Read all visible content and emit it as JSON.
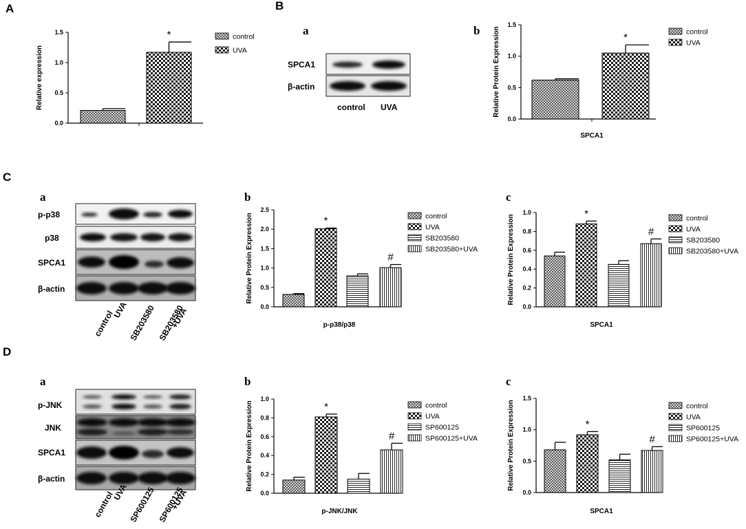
{
  "panels": {
    "A": "A",
    "B": "B",
    "C": "C",
    "D": "D",
    "Ba": "a",
    "Bb": "b",
    "Ca": "a",
    "Cb": "b",
    "Cc": "c",
    "Da": "a",
    "Db": "b",
    "Dc": "c"
  },
  "blots": {
    "B": {
      "rows": [
        "SPCA1",
        "β-actin"
      ],
      "lanes": [
        "control",
        "UVA"
      ]
    },
    "C": {
      "rows": [
        "p-p38",
        "p38",
        "SPCA1",
        "β-actin"
      ],
      "lanes": [
        "control",
        "UVA",
        "SB203580",
        "SB203580",
        "+UVA"
      ]
    },
    "D": {
      "rows": [
        "p-JNK",
        "JNK",
        "SPCA1",
        "β-actin"
      ],
      "lanes": [
        "control",
        "UVA",
        "SP600125",
        "SP600125",
        "+UVA"
      ]
    }
  },
  "chart_data": [
    {
      "id": "A",
      "type": "bar",
      "ylabel": "Relative expression",
      "xlabel": "",
      "ylim": [
        0,
        1.5
      ],
      "yticks": [
        "0.0",
        "0.5",
        "1.0",
        "1.5"
      ],
      "legend": [
        "control",
        "UVA"
      ],
      "legend_position": "top-right",
      "series": [
        {
          "name": "control",
          "value": 0.21,
          "error": 0.03,
          "mark": ""
        },
        {
          "name": "UVA",
          "value": 1.17,
          "error": 0.17,
          "mark": "*"
        }
      ]
    },
    {
      "id": "Bb",
      "type": "bar",
      "ylabel": "Relative Protein Expression",
      "xlabel": "SPCA1",
      "ylim": [
        0,
        1.5
      ],
      "yticks": [
        "0.0",
        "0.5",
        "1.0",
        "1.5"
      ],
      "legend": [
        "control",
        "UVA"
      ],
      "legend_position": "top-right",
      "series": [
        {
          "name": "control",
          "value": 0.62,
          "error": 0.02,
          "mark": ""
        },
        {
          "name": "UVA",
          "value": 1.05,
          "error": 0.13,
          "mark": "*"
        }
      ]
    },
    {
      "id": "Cb",
      "type": "bar",
      "ylabel": "Relative Protein Expression",
      "xlabel": "p-p38/p38",
      "ylim": [
        0,
        2.5
      ],
      "yticks": [
        "0.0",
        "0.5",
        "1.0",
        "1.5",
        "2.0",
        "2.5"
      ],
      "legend": [
        "control",
        "UVA",
        "SB203580",
        "SB203580+UVA"
      ],
      "legend_position": "right",
      "series": [
        {
          "name": "control",
          "value": 0.32,
          "error": 0.02,
          "mark": ""
        },
        {
          "name": "UVA",
          "value": 2.01,
          "error": 0.02,
          "mark": "*"
        },
        {
          "name": "SB203580",
          "value": 0.8,
          "error": 0.05,
          "mark": ""
        },
        {
          "name": "SB203580+UVA",
          "value": 1.01,
          "error": 0.08,
          "mark": "#"
        }
      ]
    },
    {
      "id": "Cc",
      "type": "bar",
      "ylabel": "Relative Protein Expression",
      "xlabel": "SPCA1",
      "ylim": [
        0,
        1.0
      ],
      "yticks": [
        "0.0",
        "0.2",
        "0.4",
        "0.6",
        "0.8",
        "1.0"
      ],
      "legend": [
        "control",
        "UVA",
        "SB203580",
        "SB203580+UVA"
      ],
      "legend_position": "right",
      "series": [
        {
          "name": "control",
          "value": 0.54,
          "error": 0.04,
          "mark": ""
        },
        {
          "name": "UVA",
          "value": 0.88,
          "error": 0.03,
          "mark": "*"
        },
        {
          "name": "SB203580",
          "value": 0.45,
          "error": 0.04,
          "mark": ""
        },
        {
          "name": "SB203580+UVA",
          "value": 0.67,
          "error": 0.05,
          "mark": "#"
        }
      ]
    },
    {
      "id": "Db",
      "type": "bar",
      "ylabel": "Relative Protein Expression",
      "xlabel": "p-JNK/JNK",
      "ylim": [
        0,
        1.0
      ],
      "yticks": [
        "0.0",
        "0.2",
        "0.4",
        "0.6",
        "0.8",
        "1.0"
      ],
      "legend": [
        "control",
        "UVA",
        "SP600125",
        "SP600125+UVA"
      ],
      "legend_position": "right",
      "series": [
        {
          "name": "control",
          "value": 0.14,
          "error": 0.03,
          "mark": ""
        },
        {
          "name": "UVA",
          "value": 0.81,
          "error": 0.03,
          "mark": "*"
        },
        {
          "name": "SP600125",
          "value": 0.15,
          "error": 0.06,
          "mark": ""
        },
        {
          "name": "SP600125+UVA",
          "value": 0.46,
          "error": 0.07,
          "mark": "#"
        }
      ]
    },
    {
      "id": "Dc",
      "type": "bar",
      "ylabel": "Relative Protein Expression",
      "xlabel": "SPCA1",
      "ylim": [
        0,
        1.5
      ],
      "yticks": [
        "0.0",
        "0.5",
        "1.0",
        "1.5"
      ],
      "legend": [
        "control",
        "UVA",
        "SP600125",
        "SP600125+UVA"
      ],
      "legend_position": "right",
      "series": [
        {
          "name": "control",
          "value": 0.68,
          "error": 0.12,
          "mark": ""
        },
        {
          "name": "UVA",
          "value": 0.92,
          "error": 0.05,
          "mark": "*"
        },
        {
          "name": "SP600125",
          "value": 0.52,
          "error": 0.09,
          "mark": ""
        },
        {
          "name": "SP600125+UVA",
          "value": 0.67,
          "error": 0.06,
          "mark": "#"
        }
      ]
    }
  ]
}
